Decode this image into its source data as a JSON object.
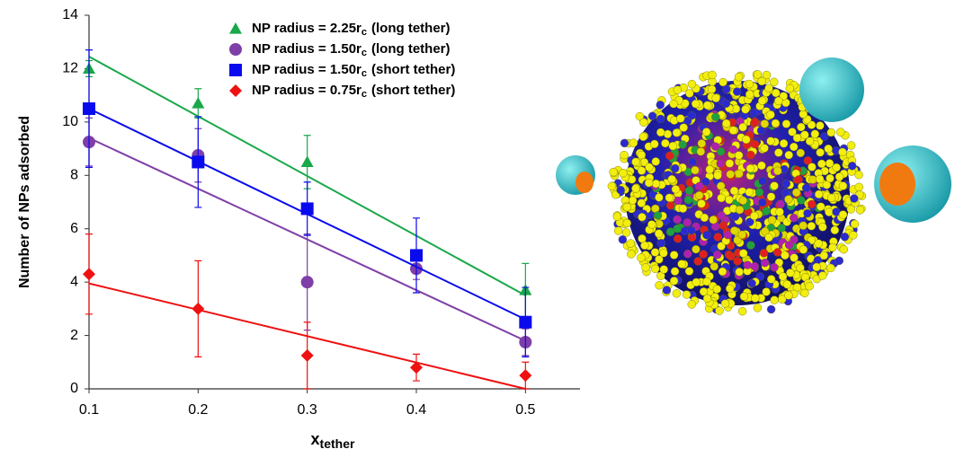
{
  "chart_data": {
    "type": "scatter",
    "x_label": {
      "text": "x",
      "sub": "tether"
    },
    "y_label": "Number of NPs adsorbed",
    "x": [
      0.1,
      0.2,
      0.3,
      0.4,
      0.5
    ],
    "xlim": [
      0.1,
      0.55
    ],
    "xticks": [
      0.1,
      0.2,
      0.3,
      0.4,
      0.5
    ],
    "ylim": [
      0,
      14
    ],
    "yticks": [
      0,
      2,
      4,
      6,
      8,
      10,
      12,
      14
    ],
    "legend": "top",
    "series": [
      {
        "name": {
          "text": "NP radius = 2.25r",
          "sub": "c",
          "rest": "(long tether)"
        },
        "color": "#1aa84a",
        "marker": "triangle",
        "values": [
          12.0,
          10.7,
          8.5,
          null,
          3.7
        ],
        "errors": [
          0.3,
          0.55,
          1.0,
          null,
          1.0
        ],
        "fit": {
          "x": [
            0.1,
            0.5
          ],
          "values": [
            12.45,
            3.5
          ]
        }
      },
      {
        "name": {
          "text": "NP radius = 1.50r",
          "sub": "c",
          "rest": "(long tether)"
        },
        "color": "#7f3fa8",
        "marker": "circle",
        "values": [
          9.25,
          8.75,
          4.0,
          4.5,
          1.75
        ],
        "errors": [
          0.9,
          1.0,
          1.8,
          0.4,
          0.5
        ],
        "fit": {
          "x": [
            0.1,
            0.5
          ],
          "values": [
            9.4,
            1.8
          ]
        }
      },
      {
        "name": {
          "text": "NP radius = 1.50r",
          "sub": "c",
          "rest": "(short tether)"
        },
        "color": "#0a0aee",
        "marker": "square",
        "values": [
          10.5,
          8.5,
          6.75,
          5.0,
          2.5
        ],
        "errors": [
          2.2,
          1.7,
          1.0,
          1.4,
          1.3
        ],
        "fit": {
          "x": [
            0.1,
            0.5
          ],
          "values": [
            10.5,
            2.6
          ]
        }
      },
      {
        "name": {
          "text": "NP radius = 0.75r",
          "sub": "c",
          "rest": "(short tether)"
        },
        "color": "#ee1111",
        "marker": "diamond",
        "values": [
          4.3,
          3.0,
          1.25,
          0.8,
          0.5
        ],
        "errors": [
          1.5,
          1.8,
          1.25,
          0.5,
          0.5
        ],
        "fit": {
          "x": [
            0.1,
            0.5
          ],
          "values": [
            3.95,
            0.0
          ]
        }
      }
    ]
  }
}
